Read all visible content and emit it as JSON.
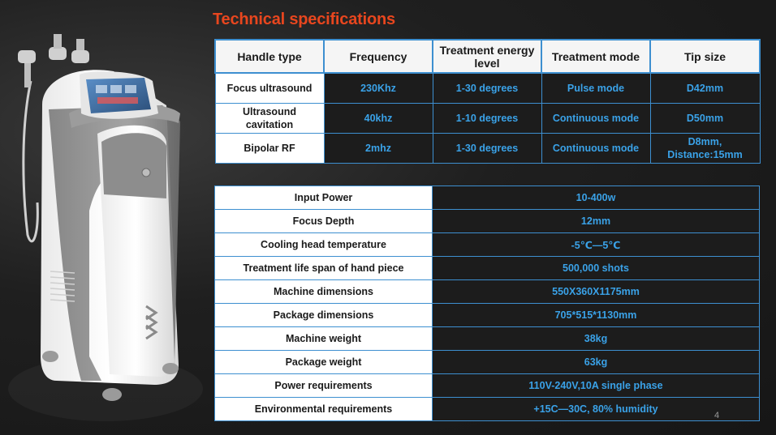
{
  "title": "Technical specifications",
  "spec_table": {
    "headers": [
      "Handle type",
      "Frequency",
      "Treatment energy level",
      "Treatment mode",
      "Tip size"
    ],
    "rows": [
      [
        "Focus ultrasound",
        "230Khz",
        "1-30 degrees",
        "Pulse mode",
        "D42mm"
      ],
      [
        "Ultrasound cavitation",
        "40khz",
        "1-10 degrees",
        "Continuous mode",
        "D50mm"
      ],
      [
        "Bipolar RF",
        "2mhz",
        "1-30 degrees",
        "Continuous mode",
        "D8mm, Distance:15mm"
      ]
    ]
  },
  "params_table": {
    "rows": [
      [
        "Input Power",
        "10-400w"
      ],
      [
        "Focus Depth",
        "12mm"
      ],
      [
        "Cooling head temperature",
        "-5℃—5℃"
      ],
      [
        "Treatment life span of hand piece",
        "500,000 shots"
      ],
      [
        "Machine dimensions",
        "550X360X1175mm"
      ],
      [
        "Package dimensions",
        "705*515*1130mm"
      ],
      [
        "Machine weight",
        "38kg"
      ],
      [
        "Package weight",
        "63kg"
      ],
      [
        "Power requirements",
        "110V-240V,10A single phase"
      ],
      [
        "Environmental requirements",
        "+15C—30C, 80% humidity"
      ]
    ]
  },
  "page_number": "4"
}
